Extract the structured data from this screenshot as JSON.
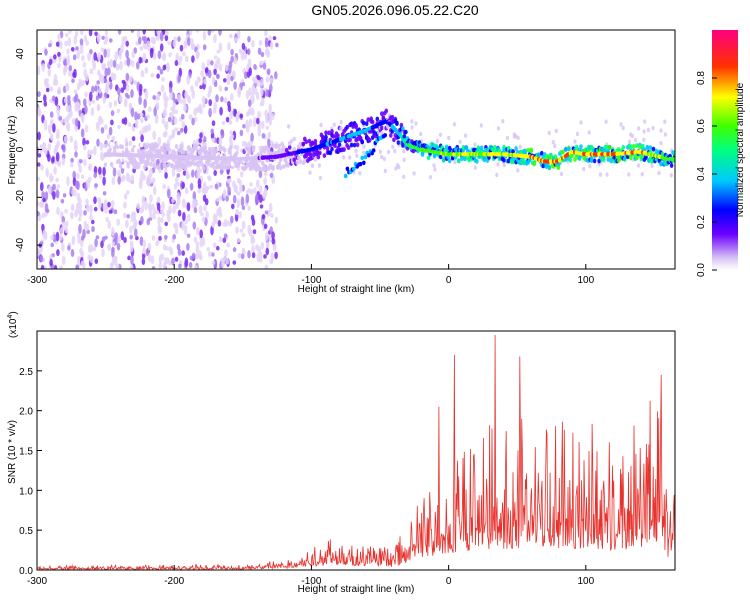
{
  "title": "GN05.2026.096.05.22.C20",
  "chart_data": [
    {
      "type": "heatmap",
      "panel": "top",
      "xlabel": "Height of straight line (km)",
      "ylabel": "Frequency (Hz)",
      "xlim": [
        -300,
        165
      ],
      "ylim": [
        -50,
        50
      ],
      "x_ticks": [
        -300,
        -200,
        -100,
        0,
        100
      ],
      "y_ticks": [
        -40,
        -20,
        0,
        20,
        40
      ],
      "colorbar": {
        "label": "Normalized spectral amplitude",
        "range": [
          0,
          1
        ],
        "ticks": [
          "0.0",
          "0.2",
          "0.4",
          "0.6",
          "0.8"
        ]
      },
      "ridge": {
        "x": [
          -250,
          -200,
          -150,
          -125,
          -100,
          -80,
          -60,
          -45,
          -35,
          -30,
          -20,
          0,
          20,
          40,
          60,
          70,
          80,
          90,
          100,
          120,
          140,
          160
        ],
        "freq": [
          -2,
          -3,
          -4,
          -3,
          0,
          4,
          8,
          12,
          6,
          2,
          0,
          -2,
          -2,
          -2,
          -3,
          -5,
          -5,
          -1,
          -2,
          -2,
          -1,
          -4
        ],
        "amplitude": [
          0.1,
          0.15,
          0.12,
          0.2,
          0.35,
          0.4,
          0.45,
          0.3,
          0.55,
          0.6,
          0.7,
          0.75,
          0.8,
          0.8,
          0.85,
          0.95,
          0.9,
          0.9,
          0.92,
          0.9,
          0.88,
          0.7
        ]
      },
      "branch": {
        "x": [
          -75,
          -65,
          -55,
          -45
        ],
        "freq": [
          -10,
          -6,
          0,
          8
        ]
      }
    },
    {
      "type": "line",
      "panel": "bottom",
      "xlabel": "Height of straight line (km)",
      "ylabel": "SNR (10 * v/v)",
      "scale_label": "(x10",
      "scale_exponent": "4",
      "scale_suffix": ")",
      "xlim": [
        -300,
        165
      ],
      "ylim": [
        0,
        3.0
      ],
      "x_ticks": [
        -300,
        -200,
        -100,
        0,
        100
      ],
      "y_ticks": [
        "0.0",
        "0.5",
        "1.0",
        "1.5",
        "2.0",
        "2.5"
      ],
      "series_color": "#e8322d",
      "envelope": {
        "x": [
          -300,
          -150,
          -120,
          -100,
          -80,
          -60,
          -40,
          -20,
          0,
          20,
          40,
          60,
          80,
          100,
          120,
          140,
          155,
          160,
          165
        ],
        "y": [
          0.03,
          0.04,
          0.08,
          0.2,
          0.25,
          0.18,
          0.15,
          0.6,
          0.8,
          1.0,
          1.05,
          1.15,
          1.1,
          1.05,
          1.0,
          1.1,
          1.5,
          0.5,
          0.9
        ]
      },
      "peaks": [
        {
          "x": 4,
          "y": 2.7
        },
        {
          "x": 34,
          "y": 2.95
        },
        {
          "x": 52,
          "y": 2.68
        },
        {
          "x": -7,
          "y": 2.05
        },
        {
          "x": 155,
          "y": 2.45
        }
      ]
    }
  ]
}
